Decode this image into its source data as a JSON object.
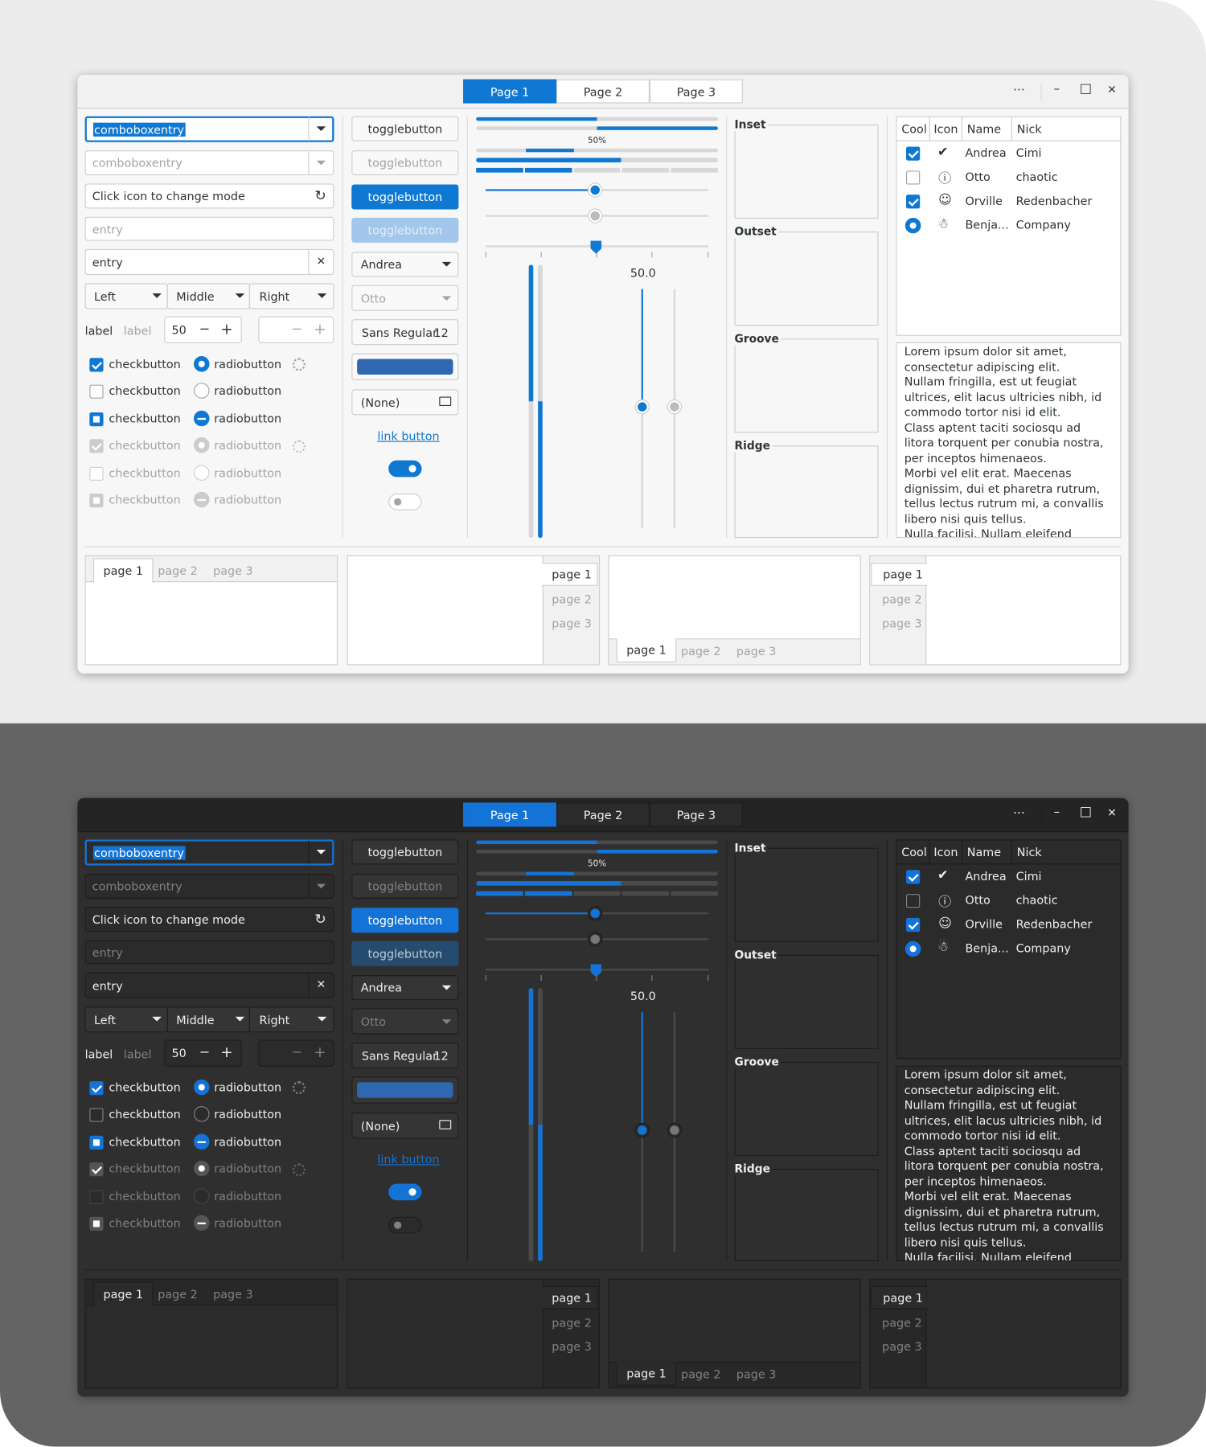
{
  "header": {
    "stack_tabs": [
      "Page 1",
      "Page 2",
      "Page 3"
    ],
    "more": "⋯",
    "minimize": "–",
    "maximize": "□",
    "close": "✕"
  },
  "col1": {
    "combo_entry": "comboboxentry",
    "combo_entry_disabled": "comboboxentry",
    "mode_entry_placeholder": "Click icon to change mode",
    "entry_placeholder": "entry",
    "entry_value": "entry",
    "linked_buttons": [
      "Left",
      "Middle",
      "Right"
    ],
    "label_1": "label",
    "label_2": "label",
    "spin_value": "50",
    "check_label": "checkbutton",
    "radio_label": "radiobutton"
  },
  "col2": {
    "toggle_label": "togglebutton",
    "combo_andrea": "Andrea",
    "combo_otto": "Otto",
    "font_name": "Sans Regular",
    "font_size": "12",
    "file_none": "(None)",
    "link_button": "link button"
  },
  "col3": {
    "progress_text": "50%",
    "scale_value": "50.0",
    "progress_fractions": [
      0.5,
      0.5
    ]
  },
  "frames": [
    "Inset",
    "Outset",
    "Groove",
    "Ridge"
  ],
  "treeview": {
    "columns": [
      "Cool",
      "Icon",
      "Name",
      "Nick"
    ],
    "rows": [
      {
        "cool": "checked",
        "icon": "check-circle-icon",
        "name": "Andrea",
        "nick": "Cimi"
      },
      {
        "cool": "unchecked",
        "icon": "exclamation-circle-icon",
        "name": "Otto",
        "nick": "chaotic"
      },
      {
        "cool": "checked",
        "icon": "face-smile-icon",
        "name": "Orville",
        "nick": "Redenbacher"
      },
      {
        "cool": "radio",
        "icon": "robot-icon",
        "name": "Benja...",
        "nick": "Company"
      }
    ]
  },
  "textview": {
    "paragraphs": [
      "Lorem ipsum dolor sit amet, consectetur adipiscing elit.",
      "Nullam fringilla, est ut feugiat ultrices, elit lacus ultricies nibh, id commodo tortor nisi id elit.",
      "Class aptent taciti sociosqu ad litora torquent per conubia nostra, per inceptos himenaeos.",
      "Morbi vel elit erat. Maecenas dignissim, dui et pharetra rutrum, tellus lectus rutrum mi, a convallis libero nisi quis tellus.",
      "Nulla facilisi. Nullam eleifend lobortis nisl."
    ]
  },
  "notebooks": {
    "tabs": [
      "page 1",
      "page 2",
      "page 3"
    ]
  },
  "colors": {
    "accent": "#0f78d2",
    "color_button": "#2f68b1"
  }
}
